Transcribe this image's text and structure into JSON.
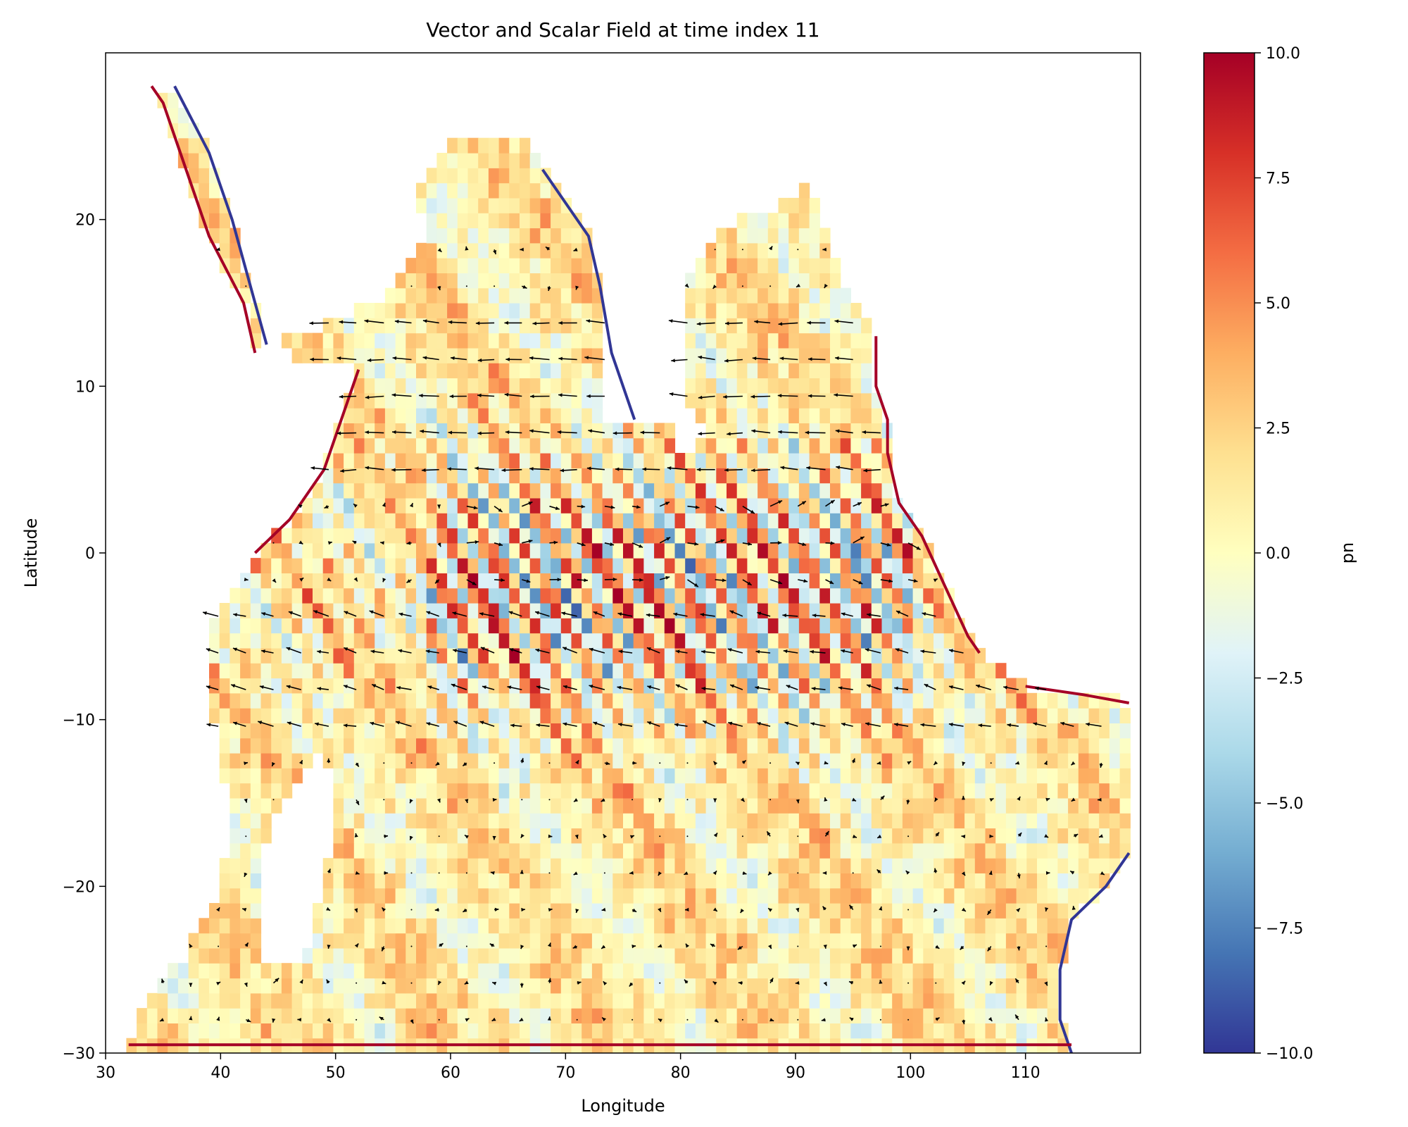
{
  "chart_data": {
    "type": "heatmap",
    "title": "Vector and Scalar Field at time index 11",
    "xlabel": "Longitude",
    "ylabel": "Latitude",
    "xlim": [
      30,
      120
    ],
    "ylim": [
      -30,
      30
    ],
    "xticks": [
      "30",
      "40",
      "50",
      "60",
      "70",
      "80",
      "90",
      "100",
      "110"
    ],
    "yticks": [
      "−30",
      "−20",
      "−10",
      "0",
      "10",
      "20"
    ],
    "xtick_values": [
      30,
      40,
      50,
      60,
      70,
      80,
      90,
      100,
      110
    ],
    "ytick_values": [
      -30,
      -20,
      -10,
      0,
      10,
      20
    ],
    "colorbar": {
      "label": "pn",
      "colormap": "RdYlBu_r",
      "range": [
        -10,
        10
      ],
      "ticks": [
        "−10.0",
        "−7.5",
        "−5.0",
        "−2.5",
        "0.0",
        "2.5",
        "5.0",
        "7.5",
        "10.0"
      ],
      "tick_values": [
        -10,
        -7.5,
        -5,
        -2.5,
        0,
        2.5,
        5,
        7.5,
        10
      ],
      "colors": [
        "#313695",
        "#4575b4",
        "#74add1",
        "#abd9e9",
        "#e0f3f8",
        "#ffffbf",
        "#fee090",
        "#fdae61",
        "#f46d43",
        "#d73027",
        "#a50026"
      ]
    },
    "overlay": "quiver vectors (black arrows) over ocean region, strongest westward flow near 5°N–15°N and 5°S–12°S",
    "grid": false
  }
}
